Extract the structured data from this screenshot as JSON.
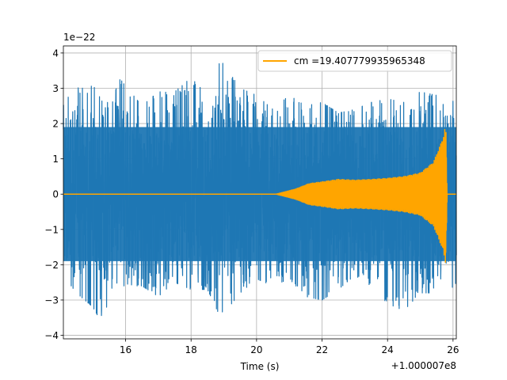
{
  "chart_data": {
    "type": "line",
    "xlabel": "Time (s)",
    "ylabel": "",
    "x_offset_label": "+1.000007e8",
    "y_scale_label": "1e−22",
    "xlim": [
      14.1,
      26.1
    ],
    "ylim": [
      -4.1,
      4.2
    ],
    "x_ticks": [
      16,
      18,
      20,
      22,
      24,
      26
    ],
    "x_tick_labels": [
      "16",
      "18",
      "20",
      "22",
      "24",
      "26"
    ],
    "y_ticks": [
      -4,
      -3,
      -2,
      -1,
      0,
      1,
      2,
      3,
      4
    ],
    "y_tick_labels": [
      "−4",
      "−3",
      "−2",
      "−1",
      "0",
      "1",
      "2",
      "3",
      "4"
    ],
    "grid": true,
    "legend_position": "top-right",
    "colors": {
      "noise": "#1f77b4",
      "signal": "#ffa500"
    },
    "series": [
      {
        "kind": "noise",
        "color": "#1f77b4",
        "typical_amplitude": 2.0,
        "envelope": [
          {
            "x": 14.1,
            "top": 2.6,
            "bottom": -2.3
          },
          {
            "x": 14.5,
            "top": 3.0,
            "bottom": -2.8
          },
          {
            "x": 15.0,
            "top": 3.1,
            "bottom": -3.2
          },
          {
            "x": 15.3,
            "top": 2.6,
            "bottom": -3.7
          },
          {
            "x": 15.6,
            "top": 2.6,
            "bottom": -2.6
          },
          {
            "x": 15.8,
            "top": 3.3,
            "bottom": -2.6
          },
          {
            "x": 16.5,
            "top": 2.5,
            "bottom": -2.6
          },
          {
            "x": 17.0,
            "top": 2.9,
            "bottom": -2.9
          },
          {
            "x": 17.5,
            "top": 2.9,
            "bottom": -2.5
          },
          {
            "x": 18.0,
            "top": 3.3,
            "bottom": -2.7
          },
          {
            "x": 18.5,
            "top": 2.8,
            "bottom": -2.7
          },
          {
            "x": 18.9,
            "top": 3.8,
            "bottom": -3.5
          },
          {
            "x": 19.5,
            "top": 3.0,
            "bottom": -2.8
          },
          {
            "x": 20.0,
            "top": 2.8,
            "bottom": -2.4
          },
          {
            "x": 20.5,
            "top": 2.4,
            "bottom": -2.6
          },
          {
            "x": 21.0,
            "top": 2.8,
            "bottom": -2.4
          },
          {
            "x": 21.5,
            "top": 2.5,
            "bottom": -2.9
          },
          {
            "x": 22.0,
            "top": 2.6,
            "bottom": -3.0
          },
          {
            "x": 22.5,
            "top": 2.3,
            "bottom": -2.7
          },
          {
            "x": 23.0,
            "top": 2.4,
            "bottom": -2.3
          },
          {
            "x": 23.5,
            "top": 2.6,
            "bottom": -2.6
          },
          {
            "x": 24.0,
            "top": 2.7,
            "bottom": -3.1
          },
          {
            "x": 24.5,
            "top": 2.6,
            "bottom": -3.3
          },
          {
            "x": 25.0,
            "top": 2.9,
            "bottom": -2.8
          },
          {
            "x": 25.5,
            "top": 2.8,
            "bottom": -2.8
          },
          {
            "x": 26.1,
            "top": 2.6,
            "bottom": -2.6
          }
        ]
      },
      {
        "name": "cm =19.407779935965348",
        "kind": "chirp",
        "color": "#ffa500",
        "envelope": [
          {
            "x": 14.1,
            "amp": 0.0
          },
          {
            "x": 20.6,
            "amp": 0.0
          },
          {
            "x": 21.2,
            "amp": 0.15
          },
          {
            "x": 21.6,
            "amp": 0.3
          },
          {
            "x": 22.0,
            "amp": 0.35
          },
          {
            "x": 22.5,
            "amp": 0.42
          },
          {
            "x": 23.0,
            "amp": 0.4
          },
          {
            "x": 23.5,
            "amp": 0.42
          },
          {
            "x": 24.0,
            "amp": 0.45
          },
          {
            "x": 24.5,
            "amp": 0.5
          },
          {
            "x": 25.0,
            "amp": 0.6
          },
          {
            "x": 25.4,
            "amp": 0.9
          },
          {
            "x": 25.7,
            "amp": 1.6
          },
          {
            "x": 25.78,
            "amp": 2.0
          },
          {
            "x": 25.82,
            "amp": 0.0
          },
          {
            "x": 26.1,
            "amp": 0.0
          }
        ]
      }
    ]
  }
}
